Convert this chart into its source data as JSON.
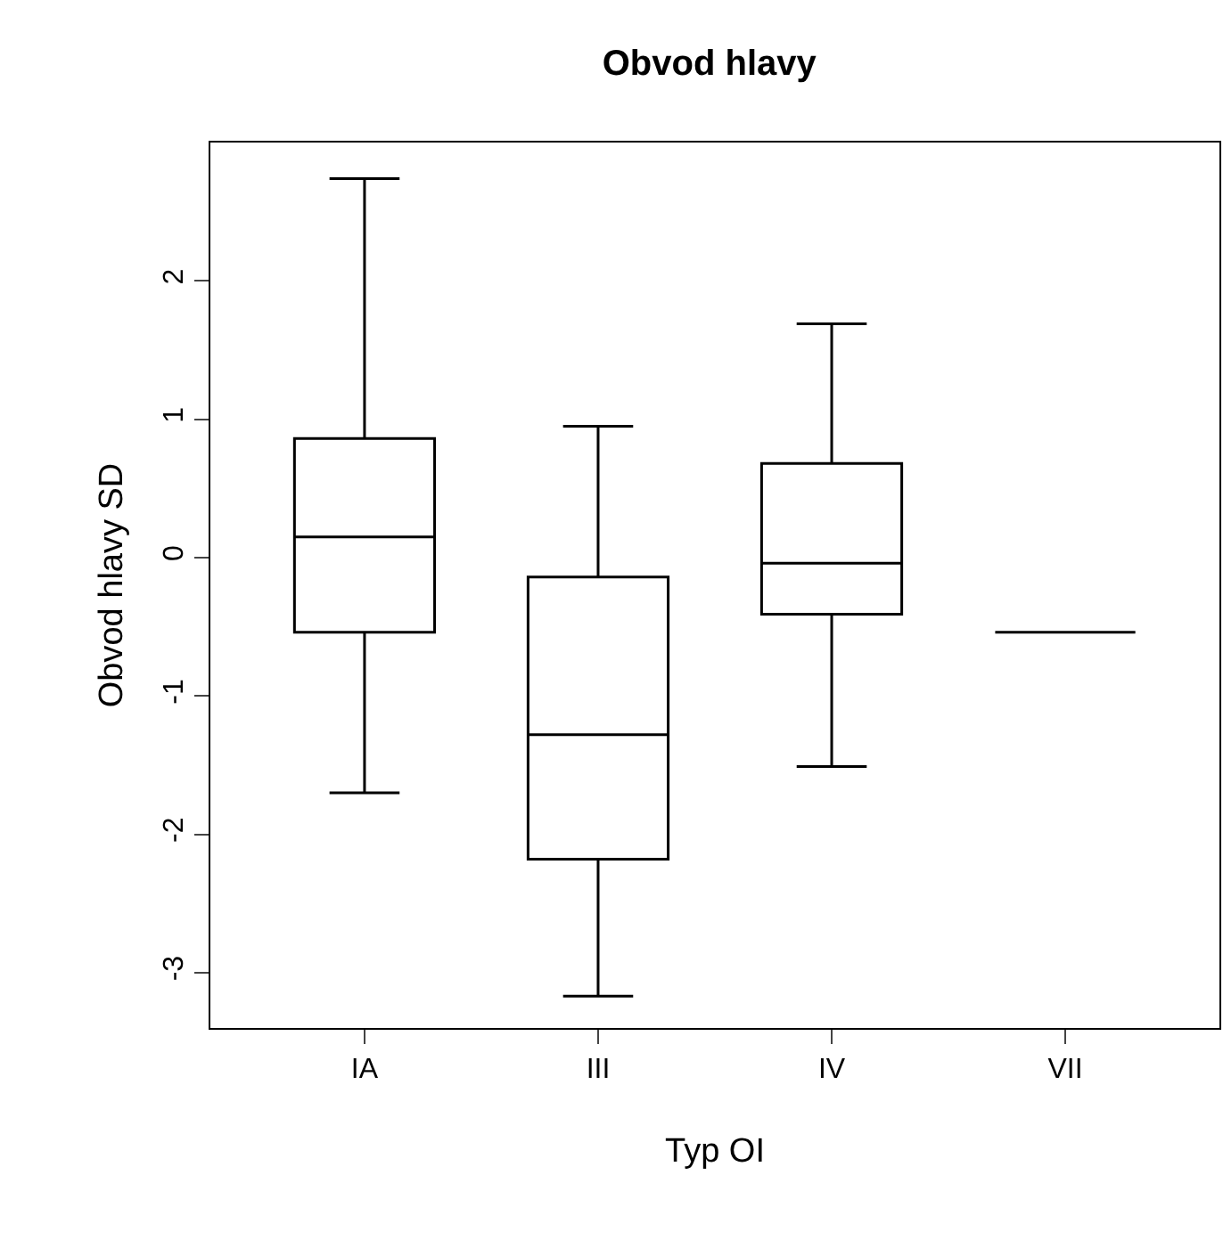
{
  "chart_data": {
    "type": "box",
    "title": "Obvod hlavy",
    "xlabel": "Typ OI",
    "ylabel": "Obvod hlavy SD",
    "categories": [
      "IA",
      "III",
      "IV",
      "VII"
    ],
    "boxes": [
      {
        "low": -1.7,
        "q1": -0.54,
        "median": 0.15,
        "q3": 0.86,
        "high": 2.74
      },
      {
        "low": -3.17,
        "q1": -2.18,
        "median": -1.28,
        "q3": -0.14,
        "high": 0.95
      },
      {
        "low": -1.51,
        "q1": -0.41,
        "median": -0.04,
        "q3": 0.68,
        "high": 1.69
      },
      {
        "low": -0.54,
        "q1": -0.54,
        "median": -0.54,
        "q3": -0.54,
        "high": -0.54
      }
    ],
    "color": "#000000",
    "ylim": [
      -3.4,
      3.0
    ],
    "yticks": [
      -3,
      -2,
      -1,
      0,
      1,
      2
    ],
    "legend": false
  }
}
